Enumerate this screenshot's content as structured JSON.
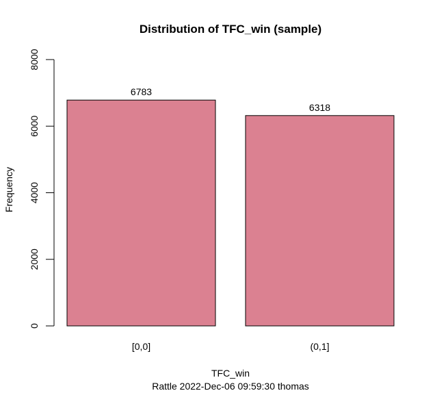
{
  "chart_data": {
    "type": "bar",
    "title": "Distribution of TFC_win (sample)",
    "xlabel": "TFC_win",
    "ylabel": "Frequency",
    "subtitle": "Rattle 2022-Dec-06 09:59:30 thomas",
    "categories": [
      "[0,0]",
      "(0,1]"
    ],
    "values": [
      6783,
      6318
    ],
    "value_labels": [
      "6783",
      "6318"
    ],
    "ylim": [
      0,
      8000
    ],
    "yticks": [
      0,
      2000,
      4000,
      6000,
      8000
    ],
    "ytick_labels": [
      "0",
      "2000",
      "4000",
      "6000",
      "8000"
    ],
    "bar_color": "#db8191",
    "grid": false
  }
}
